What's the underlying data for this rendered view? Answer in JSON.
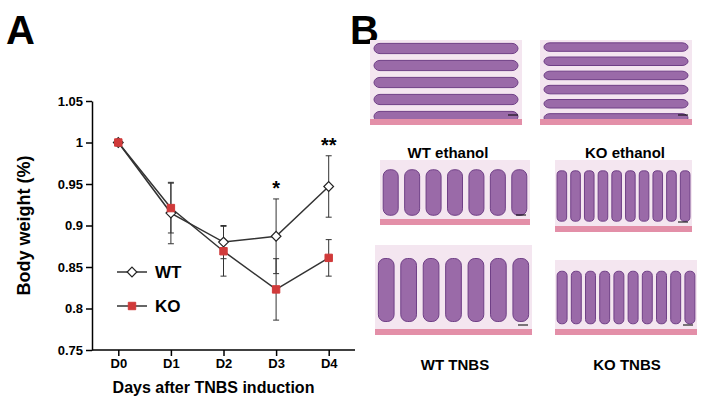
{
  "chart_data": {
    "type": "line",
    "panel_label": "A",
    "x_label": "Days after TNBS induction",
    "y_label": "Body weight (%)",
    "categories": [
      "D0",
      "D1",
      "D2",
      "D3",
      "D4"
    ],
    "ylim": [
      0.75,
      1.05
    ],
    "yticks": [
      0.75,
      0.8,
      0.85,
      0.9,
      0.95,
      1,
      1.05
    ],
    "grid": false,
    "legend": "lower left",
    "series": [
      {
        "name": "WT",
        "color": "#222222",
        "marker": "diamond",
        "line_style": "solid",
        "values": [
          1.0,
          0.915,
          0.88,
          0.887,
          0.947
        ],
        "errors": [
          0,
          0.037,
          0.02,
          0.045,
          0.037
        ]
      },
      {
        "name": "KO",
        "color": "#d03a3a",
        "marker": "square",
        "line_style": "solid",
        "values": [
          1.0,
          0.921,
          0.869,
          0.823,
          0.861
        ],
        "errors": [
          0,
          0.03,
          0.03,
          0.037,
          0.022
        ]
      }
    ],
    "annotations": [
      {
        "text": "*",
        "category": "D3"
      },
      {
        "text": "**",
        "category": "D4"
      }
    ]
  },
  "panel_b": {
    "label": "B",
    "captions": [
      "WT ethanol",
      "KO ethanol",
      "WT TNBS",
      "KO TNBS"
    ]
  }
}
